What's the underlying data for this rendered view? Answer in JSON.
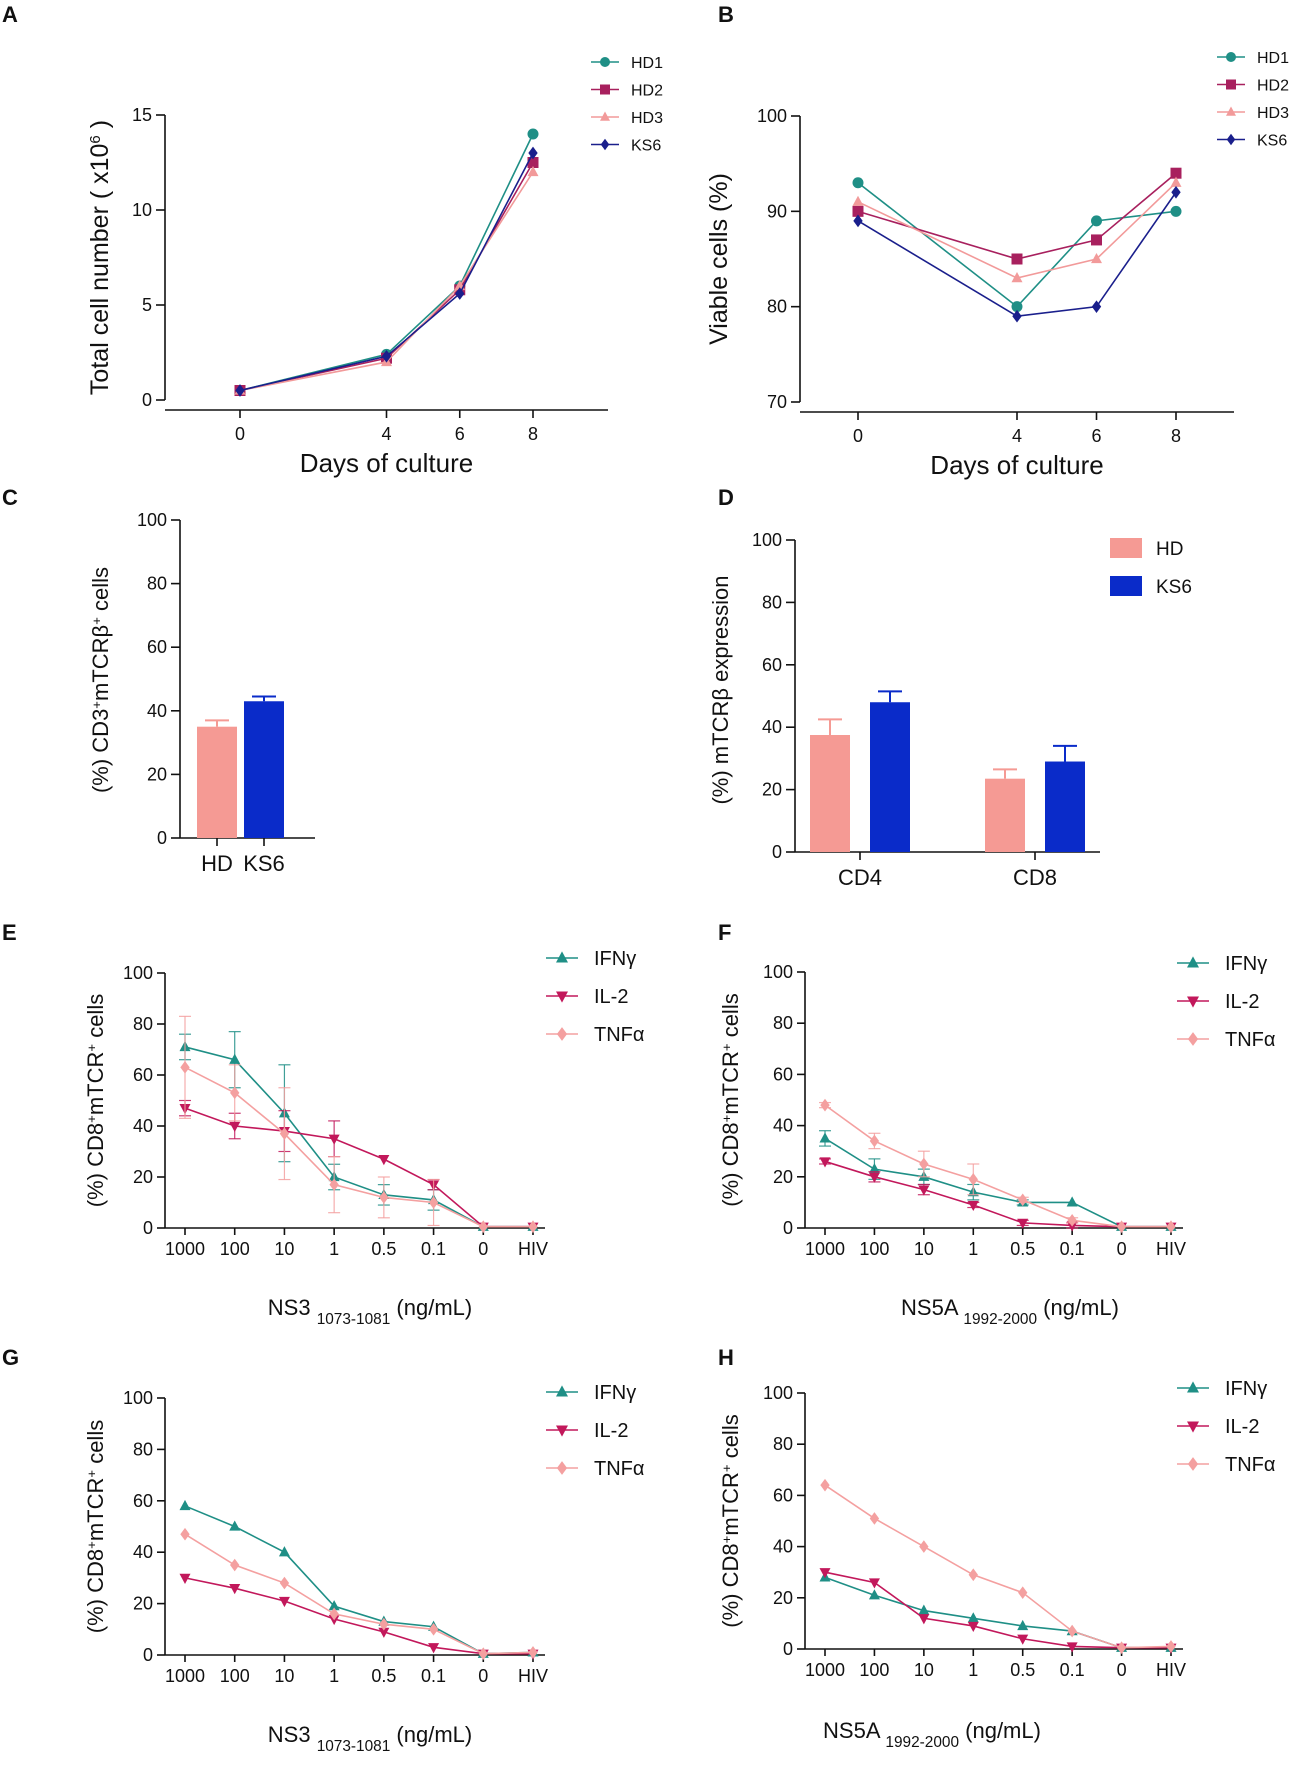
{
  "colors": {
    "HD1": "#1f8f86",
    "HD2": "#a8205e",
    "HD3": "#f29a9a",
    "KS6": "#1a1f8c",
    "IFNg": "#1f8f86",
    "IL2": "#c2185b",
    "TNFa": "#f4a0a0",
    "bar_HD": "#f59a94",
    "bar_KS6": "#0a2bc9"
  },
  "chart_data": [
    {
      "panel": "A",
      "type": "line",
      "xlabel": "Days of culture",
      "ylabel": "Total cell number ( x10",
      "ylabel_sup": "6",
      "ylabel_tail": " )",
      "x": [
        0,
        4,
        6,
        8
      ],
      "xticks": [
        "0",
        "4",
        "6",
        "8"
      ],
      "ylim": [
        0,
        15
      ],
      "yticks": [
        "0",
        "5",
        "10",
        "15"
      ],
      "ytick_values": [
        0,
        5,
        10,
        15
      ],
      "series": [
        {
          "name": "HD1",
          "marker": "circle",
          "values": [
            0.5,
            2.4,
            6.0,
            14.0
          ]
        },
        {
          "name": "HD2",
          "marker": "square",
          "values": [
            0.5,
            2.2,
            5.8,
            12.5
          ]
        },
        {
          "name": "HD3",
          "marker": "triangle",
          "values": [
            0.5,
            2.0,
            6.0,
            12.0
          ]
        },
        {
          "name": "KS6",
          "marker": "diamond",
          "values": [
            0.5,
            2.3,
            5.6,
            13.0
          ]
        }
      ]
    },
    {
      "panel": "B",
      "type": "line",
      "xlabel": "Days of culture",
      "ylabel": "Viable cells (%)",
      "x": [
        0,
        4,
        6,
        8
      ],
      "xticks": [
        "0",
        "4",
        "6",
        "8"
      ],
      "ylim": [
        70,
        100
      ],
      "yticks": [
        "70",
        "80",
        "90",
        "100"
      ],
      "ytick_values": [
        70,
        80,
        90,
        100
      ],
      "series": [
        {
          "name": "HD1",
          "marker": "circle",
          "values": [
            93,
            80,
            89,
            90
          ]
        },
        {
          "name": "HD2",
          "marker": "square",
          "values": [
            90,
            85,
            87,
            94
          ]
        },
        {
          "name": "HD3",
          "marker": "triangle",
          "values": [
            91,
            83,
            85,
            93
          ]
        },
        {
          "name": "KS6",
          "marker": "diamond",
          "values": [
            89,
            79,
            80,
            92
          ]
        }
      ]
    },
    {
      "panel": "C",
      "type": "bar",
      "ylabel": "(%) CD3",
      "ylabel_sup": "+",
      "ylabel_mid": "mTCRβ",
      "ylabel_sup2": "+",
      "ylabel_tail": " cells",
      "categories": [
        "HD",
        "KS6"
      ],
      "values": [
        35,
        43
      ],
      "errors": [
        2,
        1.5
      ],
      "ylim": [
        0,
        100
      ],
      "yticks": [
        "0",
        "20",
        "40",
        "60",
        "80",
        "100"
      ],
      "ytick_values": [
        0,
        20,
        40,
        60,
        80,
        100
      ]
    },
    {
      "panel": "D",
      "type": "bar",
      "ylabel": "(%) mTCRβ expression",
      "categories": [
        "CD4",
        "CD8"
      ],
      "series": [
        {
          "name": "HD",
          "values": [
            37.5,
            23.5
          ],
          "errors": [
            5,
            3
          ]
        },
        {
          "name": "KS6",
          "values": [
            48,
            29
          ],
          "errors": [
            3.5,
            5
          ]
        }
      ],
      "ylim": [
        0,
        100
      ],
      "yticks": [
        "0",
        "20",
        "40",
        "60",
        "80",
        "100"
      ],
      "ytick_values": [
        0,
        20,
        40,
        60,
        80,
        100
      ]
    },
    {
      "panel": "E",
      "type": "line",
      "xlabel": "NS3",
      "xlabel_sub": "1073-1081",
      "xlabel_tail": " (ng/mL)",
      "ylabel": "(%) CD8",
      "ylabel_sup": "+",
      "ylabel_mid": "mTCR",
      "ylabel_sup2": "+",
      "ylabel_tail": " cells",
      "categories": [
        "1000",
        "100",
        "10",
        "1",
        "0.5",
        "0.1",
        "0",
        "HIV"
      ],
      "ylim": [
        0,
        100
      ],
      "yticks": [
        "0",
        "20",
        "40",
        "60",
        "80",
        "100"
      ],
      "ytick_values": [
        0,
        20,
        40,
        60,
        80,
        100
      ],
      "series": [
        {
          "name": "IFNγ",
          "marker": "triangle",
          "values": [
            71,
            66,
            45,
            20,
            13,
            11,
            0.5,
            0.5
          ],
          "errors": [
            5,
            11,
            19,
            5,
            4,
            4,
            0.5,
            0.5
          ]
        },
        {
          "name": "IL-2",
          "marker": "triangle-down",
          "values": [
            47,
            40,
            38,
            35,
            27,
            17,
            0.5,
            0.5
          ],
          "errors": [
            3,
            5,
            8,
            7,
            0,
            2,
            0.5,
            0.5
          ]
        },
        {
          "name": "TNFα",
          "marker": "diamond",
          "values": [
            63,
            53,
            37,
            17,
            12,
            10,
            0.5,
            0.5
          ],
          "errors": [
            20,
            11,
            18,
            11,
            8,
            9,
            0.5,
            0.5
          ]
        }
      ]
    },
    {
      "panel": "F",
      "type": "line",
      "xlabel": "NS5A",
      "xlabel_sub": "1992-2000",
      "xlabel_tail": " (ng/mL)",
      "ylabel": "(%) CD8",
      "ylabel_sup": "+",
      "ylabel_mid": "mTCR",
      "ylabel_sup2": "+",
      "ylabel_tail": " cells",
      "categories": [
        "1000",
        "100",
        "10",
        "1",
        "0.5",
        "0.1",
        "0",
        "HIV"
      ],
      "ylim": [
        0,
        100
      ],
      "yticks": [
        "0",
        "20",
        "40",
        "60",
        "80",
        "100"
      ],
      "ytick_values": [
        0,
        20,
        40,
        60,
        80,
        100
      ],
      "series": [
        {
          "name": "IFNγ",
          "marker": "triangle",
          "values": [
            35,
            23,
            20,
            14,
            10,
            10,
            0.5,
            0.5
          ],
          "errors": [
            3,
            4,
            3,
            3,
            1,
            0,
            0.5,
            0.5
          ]
        },
        {
          "name": "IL-2",
          "marker": "triangle-down",
          "values": [
            26,
            20,
            15,
            9,
            2,
            1,
            0.5,
            0.5
          ],
          "errors": [
            1,
            2,
            2,
            1,
            1,
            1,
            0.5,
            0.5
          ]
        },
        {
          "name": "TNFα",
          "marker": "diamond",
          "values": [
            48,
            34,
            25,
            19,
            11,
            3,
            0.5,
            0.5
          ],
          "errors": [
            1,
            3,
            5,
            6,
            1,
            1,
            0.5,
            0.5
          ]
        }
      ]
    },
    {
      "panel": "G",
      "type": "line",
      "xlabel": "NS3",
      "xlabel_sub": "1073-1081",
      "xlabel_tail": " (ng/mL)",
      "ylabel": "(%) CD8",
      "ylabel_sup": "+",
      "ylabel_mid": "mTCR",
      "ylabel_sup2": "+",
      "ylabel_tail": " cells",
      "categories": [
        "1000",
        "100",
        "10",
        "1",
        "0.5",
        "0.1",
        "0",
        "HIV"
      ],
      "ylim": [
        0,
        100
      ],
      "yticks": [
        "0",
        "20",
        "40",
        "60",
        "80",
        "100"
      ],
      "ytick_values": [
        0,
        20,
        40,
        60,
        80,
        100
      ],
      "series": [
        {
          "name": "IFNγ",
          "marker": "triangle",
          "values": [
            58,
            50,
            40,
            19,
            13,
            11,
            0.5,
            1
          ]
        },
        {
          "name": "IL-2",
          "marker": "triangle-down",
          "values": [
            30,
            26,
            21,
            14,
            9,
            3,
            0.5,
            0.5
          ]
        },
        {
          "name": "TNFα",
          "marker": "diamond",
          "values": [
            47,
            35,
            28,
            16,
            12,
            10,
            0.5,
            1
          ]
        }
      ]
    },
    {
      "panel": "H",
      "type": "line",
      "xlabel": "NS5A",
      "xlabel_sub": "1992-2000",
      "xlabel_tail": " (ng/mL)",
      "ylabel": "(%) CD8",
      "ylabel_sup": "+",
      "ylabel_mid": "mTCR",
      "ylabel_sup2": "+",
      "ylabel_tail": " cells",
      "categories": [
        "1000",
        "100",
        "10",
        "1",
        "0.5",
        "0.1",
        "0",
        "HIV"
      ],
      "ylim": [
        0,
        100
      ],
      "yticks": [
        "0",
        "20",
        "40",
        "60",
        "80",
        "100"
      ],
      "ytick_values": [
        0,
        20,
        40,
        60,
        80,
        100
      ],
      "series": [
        {
          "name": "IFNγ",
          "marker": "triangle",
          "values": [
            28,
            21,
            15,
            12,
            9,
            7,
            0.5,
            0.5
          ]
        },
        {
          "name": "IL-2",
          "marker": "triangle-down",
          "values": [
            30,
            26,
            12,
            9,
            4,
            1,
            0.5,
            0.5
          ]
        },
        {
          "name": "TNFα",
          "marker": "diamond",
          "values": [
            64,
            51,
            40,
            29,
            22,
            7,
            0.5,
            1
          ]
        }
      ]
    }
  ]
}
